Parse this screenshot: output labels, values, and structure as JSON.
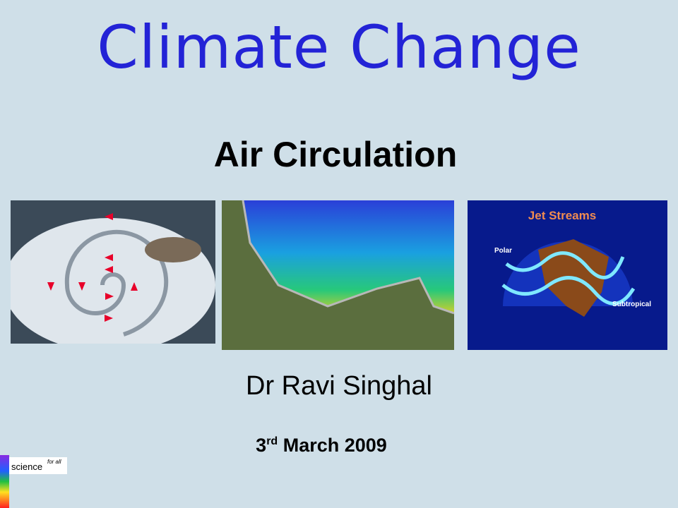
{
  "slide": {
    "title": "Climate Change",
    "subtitle": "Air Circulation",
    "author": "Dr Ravi Singhal",
    "date": {
      "day": "3",
      "suffix": "rd",
      "rest": "March 2009"
    },
    "images": {
      "jet_streams": {
        "title": "Jet Streams",
        "labels": [
          "Polar",
          "Subtropical"
        ]
      }
    },
    "logo": {
      "word": "science",
      "tag": "for all"
    }
  }
}
